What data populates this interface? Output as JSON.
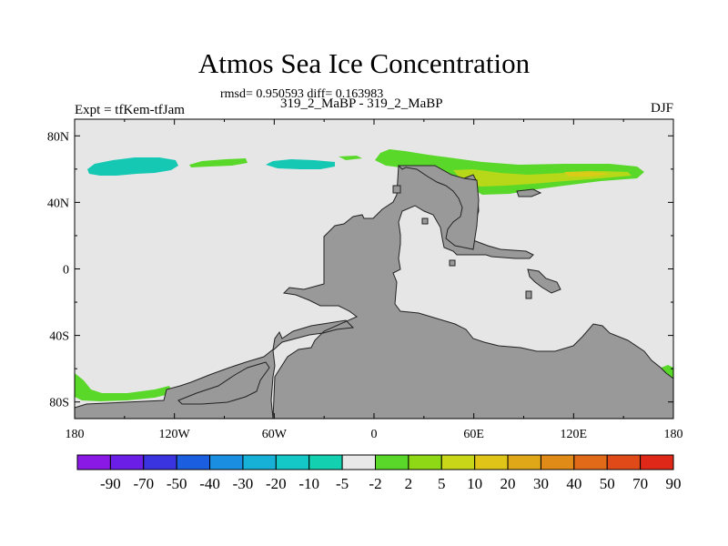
{
  "title": "Atmos Sea Ice Concentration",
  "stats_text": "rmsd= 0.950593 diff= 0.163983",
  "left_label": "Expt = tfKem-tfJam",
  "center_label": "319_2_MaBP - 319_2_MaBP",
  "right_label": "DJF",
  "lat_labels": [
    "80N",
    "40N",
    "0",
    "40S",
    "80S"
  ],
  "lon_labels": [
    "180",
    "120W",
    "60W",
    "0",
    "60E",
    "120E",
    "180"
  ],
  "colorbar": {
    "colors": [
      "#8a19e6",
      "#6a1ee6",
      "#3a33e0",
      "#1b5fe0",
      "#1a8ee0",
      "#17b1d8",
      "#15c8c8",
      "#12d0b0",
      "#e8e8e8",
      "#5ad82a",
      "#8ed815",
      "#c8d818",
      "#e0c418",
      "#e0a818",
      "#e08a18",
      "#e06a18",
      "#e04a18",
      "#e02818"
    ],
    "labels": [
      "-90",
      "-70",
      "-50",
      "-40",
      "-30",
      "-20",
      "-10",
      "-5",
      "-2",
      "2",
      "5",
      "10",
      "20",
      "30",
      "40",
      "50",
      "70",
      "90"
    ]
  },
  "colors": {
    "ocean": "#e6e6e6",
    "land": "#999999"
  }
}
